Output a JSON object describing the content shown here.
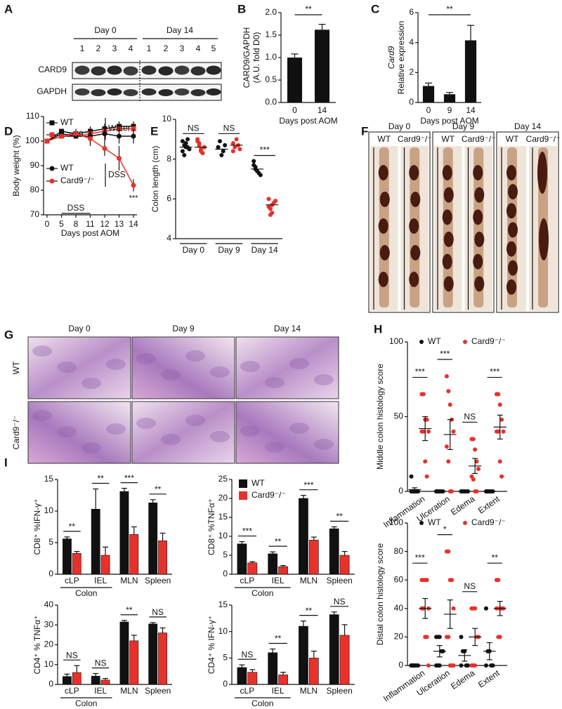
{
  "panel_labels": [
    "A",
    "B",
    "C",
    "D",
    "E",
    "F",
    "G",
    "H",
    "I"
  ],
  "blot": {
    "day_labels": [
      "Day 0",
      "Day 14"
    ],
    "lanes": [
      "1",
      "2",
      "3",
      "4",
      "1",
      "2",
      "3",
      "4",
      "5"
    ],
    "rows": [
      "CARD9",
      "GAPDH"
    ]
  },
  "photos": {
    "days": [
      "Day 0",
      "Day 9",
      "Day 14"
    ],
    "genotypes": [
      "WT",
      "Card9⁻/⁻"
    ]
  },
  "histology": {
    "days": [
      "Day 0",
      "Day 9",
      "Day 14"
    ],
    "genotypes": [
      "WT",
      "Card9⁻/⁻"
    ]
  },
  "chart_data": [
    {
      "type": "bar",
      "categories": [
        "0",
        "14"
      ],
      "values": [
        1,
        1.62
      ],
      "errors": [
        0.08,
        0.12
      ],
      "color": "#111111",
      "ylim": [
        0,
        2
      ],
      "yticks": [
        {
          "value": 0,
          "label": "0.0"
        },
        0.5,
        {
          "value": 1,
          "label": "1.0"
        },
        1.5,
        {
          "value": 2,
          "label": "2.0"
        }
      ],
      "ylabel": [
        "CARD9/GAPDH",
        "(A.U. fold D0)"
      ],
      "xlabel": "Days post AOM",
      "significance": "**"
    },
    {
      "type": "bar",
      "categories": [
        "0",
        "9",
        "14"
      ],
      "values": [
        1.1,
        0.55,
        4.15
      ],
      "errors": [
        0.2,
        0.12,
        1.0
      ],
      "color": "#111111",
      "ylim": [
        0,
        6
      ],
      "yticks": [
        0,
        2,
        4,
        6
      ],
      "ylabel": [
        "Card9",
        "Relative expression"
      ],
      "xlabel": "Days post AOM",
      "significance": "**"
    },
    {
      "type": "line",
      "categories": [
        "0",
        "5",
        "8",
        "11",
        "12",
        "13",
        "14"
      ],
      "series": [
        {
          "name": "WT",
          "color": "#111111",
          "marker": "square",
          "values": [
            100,
            104,
            103,
            104,
            105,
            106,
            106
          ],
          "errors": [
            0,
            1,
            1,
            2,
            2,
            2,
            2
          ]
        },
        {
          "name": "Card9⁻/⁻",
          "color": "#e8312a",
          "marker": "square",
          "values": [
            100,
            102,
            102,
            103,
            104,
            105,
            105
          ],
          "errors": [
            0,
            1,
            1,
            2,
            2,
            2,
            2
          ]
        },
        {
          "name": "WT",
          "color": "#111111",
          "marker": "circle",
          "values": [
            100,
            103,
            102,
            102,
            103,
            102,
            102
          ],
          "errors": [
            0,
            1,
            1,
            3,
            3,
            3,
            3
          ]
        },
        {
          "name": "Card9⁻/⁻",
          "color": "#e8312a",
          "marker": "circle",
          "values": [
            100,
            102,
            103,
            101,
            97,
            93,
            82
          ],
          "errors": [
            0,
            1,
            2,
            3,
            3,
            5,
            2.5
          ]
        }
      ],
      "legend_groups": [
        "Water",
        "DSS"
      ],
      "period_label": "DSS",
      "annotation": "***",
      "ylim": [
        70,
        110
      ],
      "yticks": [
        70,
        80,
        90,
        100,
        110
      ],
      "ylabel": "Body weight (%)",
      "xlabel": "Days post AOM"
    },
    {
      "type": "strip",
      "categories": [
        "Day 0",
        "Day 9",
        "Day 14"
      ],
      "series": [
        {
          "color": "#111111",
          "values": [
            [
              8.9,
              8.7,
              8.6,
              8.6,
              8.5,
              8.4,
              8.2,
              8.8,
              9.0
            ],
            [
              8.6,
              8.9,
              8.2,
              8.4,
              8.7
            ],
            [
              7.9,
              7.6,
              7.4,
              7.3,
              7.2,
              7.7,
              7.5
            ]
          ],
          "means": [
            8.6,
            8.5,
            7.5
          ]
        },
        {
          "color": "#e8312a",
          "values": [
            [
              8.9,
              8.7,
              8.5,
              8.3,
              8.6,
              9.0,
              8.8,
              8.4
            ],
            [
              8.8,
              8.6,
              9.0,
              8.7,
              8.5,
              8.4
            ],
            [
              5.6,
              5.5,
              5.3,
              5.8,
              5.9,
              6.0,
              5.2,
              5.7
            ]
          ],
          "means": [
            8.6,
            8.7,
            5.7
          ]
        }
      ],
      "ylim": [
        4,
        10
      ],
      "yticks": [
        4,
        6,
        8,
        10
      ],
      "ylabel": "Colon length (cm)",
      "significance": [
        "NS",
        "NS",
        "***"
      ]
    },
    {
      "type": "strip",
      "categories": [
        "Inflammation",
        "Ulceration",
        "Edema",
        "Extent"
      ],
      "series": [
        {
          "name": "WT",
          "color": "#111111",
          "values": [
            [
              10,
              0,
              0,
              0,
              0,
              0,
              0,
              0
            ],
            [
              0,
              0,
              0,
              0,
              0,
              0,
              0
            ],
            [
              0,
              0,
              0,
              0,
              0,
              0
            ],
            [
              0,
              0,
              0,
              0,
              0,
              0,
              0
            ]
          ],
          "means": [
            1.2,
            0,
            0,
            0
          ],
          "errors": [
            1.2,
            0,
            0,
            0
          ]
        },
        {
          "name": "Card9⁻/⁻",
          "color": "#e8312a",
          "values": [
            [
              65,
              65,
              48,
              48,
              40,
              40,
              40,
              20,
              10
            ],
            [
              77,
              67,
              58,
              48,
              40,
              30,
              20,
              0,
              0
            ],
            [
              35,
              35,
              28,
              20,
              15,
              10,
              8,
              0,
              0
            ],
            [
              65,
              65,
              58,
              48,
              40,
              40,
              40,
              20,
              10
            ]
          ],
          "means": [
            42,
            38,
            17,
            43
          ],
          "errors": [
            8,
            10,
            5,
            8
          ]
        }
      ],
      "ylim": [
        0,
        100
      ],
      "yticks": [
        0,
        50,
        100
      ],
      "ylabel": "Middle colon histology score",
      "significance": [
        "***",
        "***",
        "NS",
        "***"
      ]
    },
    {
      "type": "strip",
      "categories": [
        "Inflammation",
        "Ulceration",
        "Edema",
        "Extent"
      ],
      "series": [
        {
          "name": "WT",
          "color": "#111111",
          "values": [
            [
              0,
              0,
              0,
              0,
              0,
              0,
              0,
              0
            ],
            [
              20,
              20,
              20,
              10,
              10,
              0,
              0,
              0
            ],
            [
              20,
              10,
              10,
              0,
              0,
              0
            ],
            [
              40,
              10,
              10,
              0,
              0,
              0
            ]
          ],
          "means": [
            0,
            10,
            7,
            10
          ],
          "errors": [
            0,
            4,
            4,
            6
          ]
        },
        {
          "name": "Card9⁻/⁻",
          "color": "#e8312a",
          "values": [
            [
              60,
              60,
              60,
              60,
              40,
              40,
              40,
              20,
              20,
              0
            ],
            [
              80,
              80,
              60,
              60,
              40,
              20,
              20,
              0,
              0,
              0
            ],
            [
              40,
              40,
              40,
              20,
              20,
              0,
              0,
              0
            ],
            [
              60,
              60,
              40,
              40,
              40,
              40,
              20,
              20
            ]
          ],
          "means": [
            40,
            36,
            20,
            40
          ],
          "errors": [
            7,
            10,
            6,
            5
          ]
        }
      ],
      "ylim": [
        0,
        100
      ],
      "yticks": [
        0,
        20,
        40,
        60,
        80,
        100
      ],
      "ylabel": "Distal colon histology score",
      "significance": [
        "***",
        "*",
        "NS",
        "**"
      ]
    },
    {
      "type": "grouped_bar",
      "categories": [
        "cLP",
        "IEL",
        "MLN",
        "Spleen"
      ],
      "group_label": "Colon",
      "series": [
        {
          "color": "#111111",
          "values": [
            5.6,
            10.3,
            13.1,
            11.3
          ],
          "errors": [
            0.3,
            3.2,
            0.5,
            0.5
          ]
        },
        {
          "color": "#e8312a",
          "values": [
            3.3,
            3.0,
            6.3,
            5.3
          ],
          "errors": [
            0.3,
            1.3,
            1.2,
            1.2
          ]
        }
      ],
      "ylim": [
        0,
        15
      ],
      "yticks": [
        0,
        5,
        10,
        15
      ],
      "ylabel": "CD8⁺ %IFN-γ⁺",
      "significance": [
        "**",
        "**",
        "***",
        "**"
      ]
    },
    {
      "type": "grouped_bar",
      "categories": [
        "cLP",
        "IEL",
        "MLN",
        "Spleen"
      ],
      "group_label": "Colon",
      "series": [
        {
          "name": "WT",
          "color": "#111111",
          "values": [
            8.0,
            5.4,
            20.0,
            12.0
          ],
          "errors": [
            0.6,
            0.5,
            0.8,
            0.5
          ]
        },
        {
          "name": "Card9⁻/⁻",
          "color": "#e8312a",
          "values": [
            3.0,
            2.0,
            9.0,
            5.0
          ],
          "errors": [
            0.3,
            0.3,
            0.8,
            1.0
          ]
        }
      ],
      "ylim": [
        0,
        25
      ],
      "yticks": [
        0,
        5,
        10,
        15,
        20,
        25
      ],
      "ylabel": "CD8⁺ %TNFα⁺",
      "significance": [
        "***",
        "**",
        "***",
        "**"
      ]
    },
    {
      "type": "grouped_bar",
      "categories": [
        "cLP",
        "IEL",
        "MLN",
        "Spleen"
      ],
      "group_label": "Colon",
      "series": [
        {
          "color": "#111111",
          "values": [
            4.0,
            4.2,
            31.5,
            30.5
          ],
          "errors": [
            1.2,
            1.3,
            0.8,
            0.7
          ]
        },
        {
          "color": "#e8312a",
          "values": [
            6.0,
            2.2,
            22.0,
            26.0
          ],
          "errors": [
            3.5,
            0.8,
            2.8,
            2.5
          ]
        }
      ],
      "ylim": [
        0,
        40
      ],
      "yticks": [
        0,
        10,
        20,
        30,
        40
      ],
      "ylabel": "CD4⁺ % TNFα⁺",
      "significance": [
        "NS",
        "NS",
        "**",
        "NS"
      ]
    },
    {
      "type": "grouped_bar",
      "categories": [
        "cLP",
        "IEL",
        "MLN",
        "Spleen"
      ],
      "group_label": "Colon",
      "series": [
        {
          "color": "#111111",
          "values": [
            3.2,
            6.0,
            11.0,
            13.2
          ],
          "errors": [
            0.5,
            0.7,
            1.0,
            0.5
          ]
        },
        {
          "color": "#e8312a",
          "values": [
            2.3,
            1.8,
            5.0,
            9.3
          ],
          "errors": [
            0.5,
            0.5,
            1.3,
            2.0
          ]
        }
      ],
      "ylim": [
        0,
        15
      ],
      "yticks": [
        0,
        5,
        10,
        15
      ],
      "ylabel": "CD4⁺ % IFN-γ⁺",
      "significance": [
        "NS",
        "**",
        "**",
        "NS"
      ]
    }
  ]
}
